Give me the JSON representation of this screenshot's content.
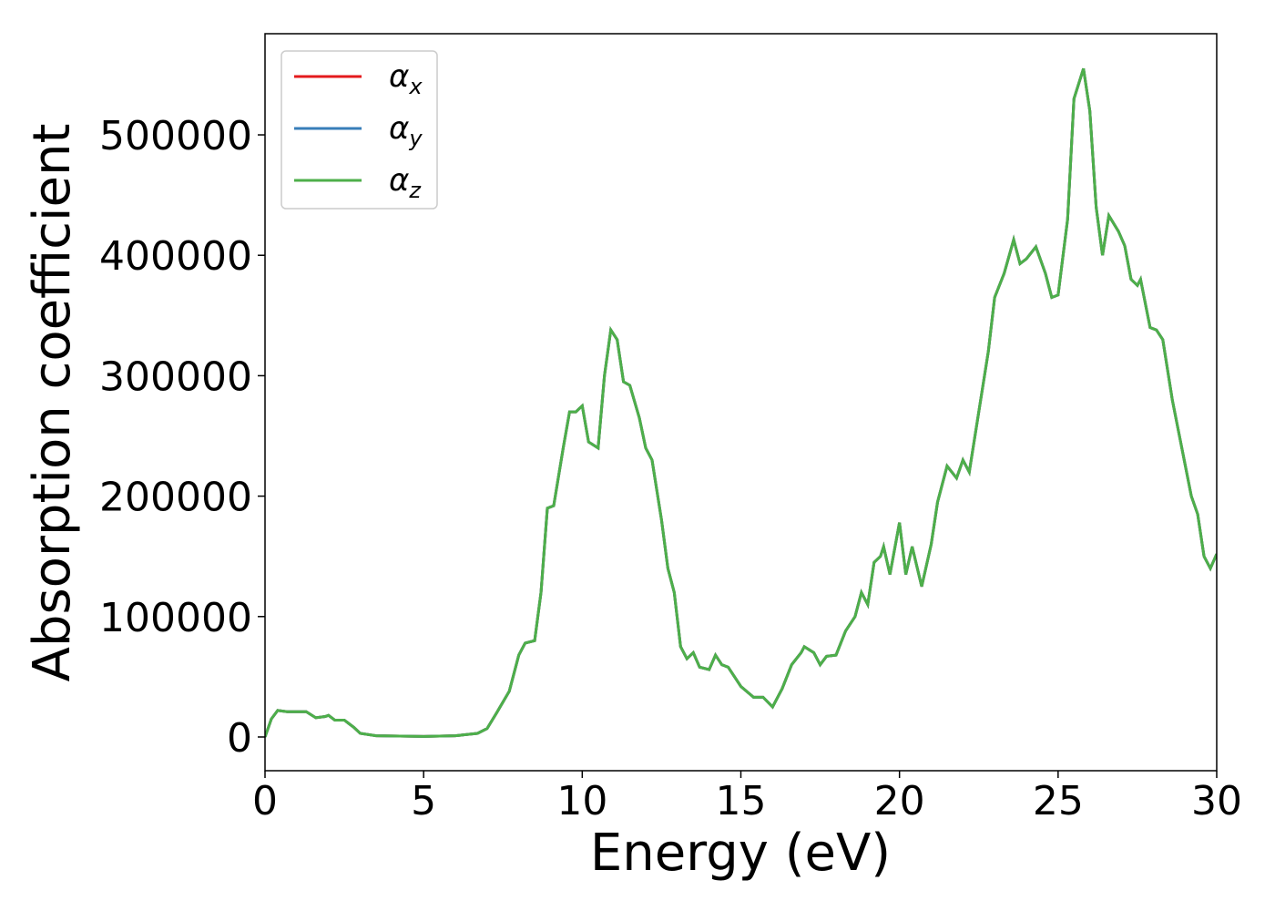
{
  "chart_data": {
    "type": "line",
    "xlabel": "Energy (eV)",
    "ylabel": "Absorption coefficient",
    "x": [
      0,
      0.2,
      0.4,
      0.7,
      1.0,
      1.3,
      1.6,
      1.9,
      2.0,
      2.2,
      2.5,
      2.8,
      3.0,
      3.5,
      5,
      6,
      6.7,
      7.0,
      7.3,
      7.7,
      8.0,
      8.2,
      8.5,
      8.7,
      8.9,
      9.1,
      9.4,
      9.6,
      9.8,
      10.0,
      10.2,
      10.5,
      10.7,
      10.9,
      11.1,
      11.3,
      11.5,
      11.8,
      12.0,
      12.2,
      12.5,
      12.7,
      12.9,
      13.1,
      13.3,
      13.5,
      13.7,
      14.0,
      14.2,
      14.4,
      14.6,
      15.0,
      15.4,
      15.7,
      16.0,
      16.3,
      16.6,
      16.9,
      17.0,
      17.3,
      17.5,
      17.7,
      18.0,
      18.3,
      18.6,
      18.8,
      19.0,
      19.2,
      19.4,
      19.5,
      19.7,
      20.0,
      20.2,
      20.4,
      20.7,
      21.0,
      21.2,
      21.5,
      21.8,
      22.0,
      22.2,
      22.5,
      22.8,
      23.0,
      23.3,
      23.6,
      23.8,
      24.0,
      24.3,
      24.6,
      24.8,
      25.0,
      25.3,
      25.5,
      25.8,
      26.0,
      26.2,
      26.4,
      26.6,
      26.9,
      27.1,
      27.3,
      27.5,
      27.6,
      27.9,
      28.1,
      28.3,
      28.6,
      28.9,
      29.2,
      29.4,
      29.6,
      29.8,
      30.0
    ],
    "series": [
      {
        "name": "αx",
        "color": "#e41a1c",
        "values": [
          0,
          15000,
          22000,
          21000,
          21000,
          21000,
          16000,
          17000,
          18000,
          14000,
          14000,
          8000,
          3000,
          1000,
          500,
          1000,
          3000,
          7000,
          20000,
          38000,
          68000,
          78000,
          80000,
          120000,
          190000,
          192000,
          240000,
          270000,
          270000,
          275000,
          245000,
          240000,
          300000,
          338000,
          330000,
          295000,
          292000,
          265000,
          240000,
          230000,
          180000,
          140000,
          120000,
          75000,
          65000,
          70000,
          58000,
          56000,
          68000,
          60000,
          58000,
          42000,
          33000,
          33000,
          25000,
          40000,
          60000,
          70000,
          75000,
          70000,
          60000,
          67000,
          68000,
          88000,
          100000,
          120000,
          110000,
          145000,
          150000,
          158000,
          135000,
          178000,
          135000,
          158000,
          125000,
          160000,
          195000,
          225000,
          215000,
          230000,
          220000,
          270000,
          320000,
          365000,
          385000,
          413000,
          393000,
          397000,
          407000,
          385000,
          365000,
          367000,
          430000,
          530000,
          555000,
          520000,
          440000,
          400000,
          433000,
          420000,
          408000,
          380000,
          375000,
          380000,
          340000,
          338000,
          330000,
          280000,
          240000,
          200000,
          185000,
          150000,
          140000,
          152000
        ]
      },
      {
        "name": "αy",
        "color": "#377eb8",
        "values": [
          0,
          15000,
          22000,
          21000,
          21000,
          21000,
          16000,
          17000,
          18000,
          14000,
          14000,
          8000,
          3000,
          1000,
          500,
          1000,
          3000,
          7000,
          20000,
          38000,
          68000,
          78000,
          80000,
          120000,
          190000,
          192000,
          240000,
          270000,
          270000,
          275000,
          245000,
          240000,
          300000,
          338000,
          330000,
          295000,
          292000,
          265000,
          240000,
          230000,
          180000,
          140000,
          120000,
          75000,
          65000,
          70000,
          58000,
          56000,
          68000,
          60000,
          58000,
          42000,
          33000,
          33000,
          25000,
          40000,
          60000,
          70000,
          75000,
          70000,
          60000,
          67000,
          68000,
          88000,
          100000,
          120000,
          110000,
          145000,
          150000,
          158000,
          135000,
          178000,
          135000,
          158000,
          125000,
          160000,
          195000,
          225000,
          215000,
          230000,
          220000,
          270000,
          320000,
          365000,
          385000,
          413000,
          393000,
          397000,
          407000,
          385000,
          365000,
          367000,
          430000,
          530000,
          555000,
          520000,
          440000,
          400000,
          433000,
          420000,
          408000,
          380000,
          375000,
          380000,
          340000,
          338000,
          330000,
          280000,
          240000,
          200000,
          185000,
          150000,
          140000,
          152000
        ]
      },
      {
        "name": "αz",
        "color": "#4daf4a",
        "values": [
          0,
          15000,
          22000,
          21000,
          21000,
          21000,
          16000,
          17000,
          18000,
          14000,
          14000,
          8000,
          3000,
          1000,
          500,
          1000,
          3000,
          7000,
          20000,
          38000,
          68000,
          78000,
          80000,
          120000,
          190000,
          192000,
          240000,
          270000,
          270000,
          275000,
          245000,
          240000,
          300000,
          338000,
          330000,
          295000,
          292000,
          265000,
          240000,
          230000,
          180000,
          140000,
          120000,
          75000,
          65000,
          70000,
          58000,
          56000,
          68000,
          60000,
          58000,
          42000,
          33000,
          33000,
          25000,
          40000,
          60000,
          70000,
          75000,
          70000,
          60000,
          67000,
          68000,
          88000,
          100000,
          120000,
          110000,
          145000,
          150000,
          158000,
          135000,
          178000,
          135000,
          158000,
          125000,
          160000,
          195000,
          225000,
          215000,
          230000,
          220000,
          270000,
          320000,
          365000,
          385000,
          413000,
          393000,
          397000,
          407000,
          385000,
          365000,
          367000,
          430000,
          530000,
          555000,
          520000,
          440000,
          400000,
          433000,
          420000,
          408000,
          380000,
          375000,
          380000,
          340000,
          338000,
          330000,
          280000,
          240000,
          200000,
          185000,
          150000,
          140000,
          152000
        ]
      }
    ],
    "xlim": [
      0,
      30
    ],
    "xticks": [
      0,
      5,
      10,
      15,
      20,
      25,
      30
    ],
    "ylim": [
      -28000,
      584000
    ],
    "yticks": [
      0,
      100000,
      200000,
      300000,
      400000,
      500000
    ],
    "grid": false,
    "legend": "upper left"
  }
}
